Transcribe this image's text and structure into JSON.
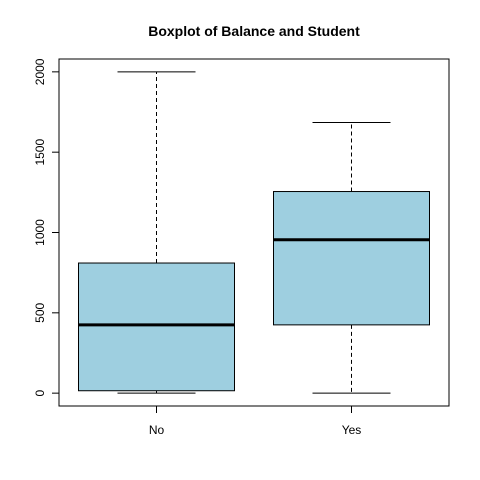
{
  "chart_data": {
    "type": "boxplot",
    "title": "Boxplot of Balance and Student",
    "xlabel": "",
    "ylabel": "",
    "categories": [
      "No",
      "Yes"
    ],
    "y_ticks": [
      0,
      500,
      1000,
      1500,
      2000
    ],
    "ylim": [
      -80,
      2080
    ],
    "box_fill": "#9ECFE0",
    "box_stroke": "#000000",
    "median_color": "#000000",
    "boxes": [
      {
        "name": "No",
        "min": 0,
        "q1": 15,
        "median": 425,
        "q3": 810,
        "max": 2000
      },
      {
        "name": "Yes",
        "min": 0,
        "q1": 425,
        "median": 955,
        "q3": 1255,
        "max": 1685
      }
    ]
  }
}
